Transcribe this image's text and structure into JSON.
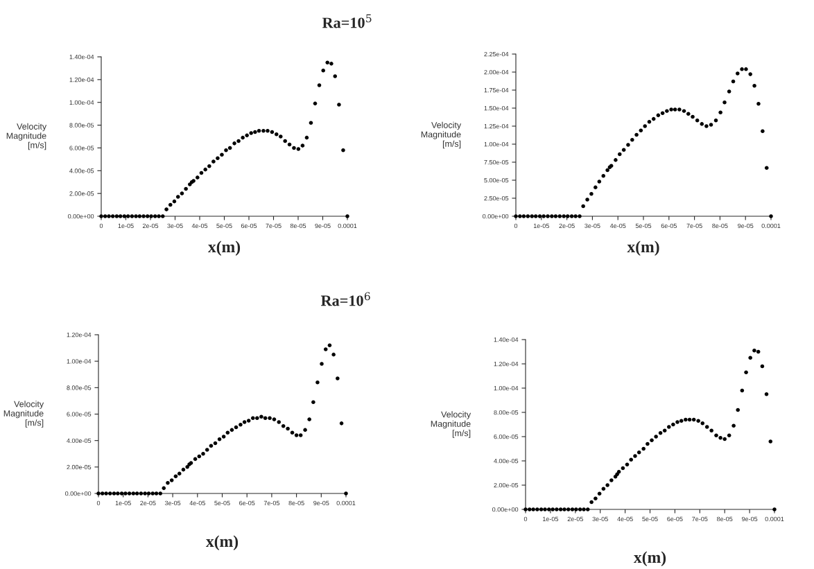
{
  "chart_data": [
    {
      "type": "scatter",
      "title": "Ra=10$^{5}$",
      "xlabel": "x(m)",
      "ylabel": "Velocity\nMagnitude\n[m/s]",
      "color": "#000000",
      "marker": "circle",
      "x": [
        0,
        1.6e-06,
        3.1e-06,
        4.7e-06,
        6.3e-06,
        7.8e-06,
        9.4e-06,
        1.09e-05,
        1.25e-05,
        1.41e-05,
        1.56e-05,
        1.72e-05,
        1.88e-05,
        2.03e-05,
        2.19e-05,
        2.34e-05,
        2.5e-05,
        2.65e-05,
        2.81e-05,
        2.97e-05,
        3.12e-05,
        3.28e-05,
        3.44e-05,
        3.6e-05,
        3.68e-05,
        3.75e-05,
        3.91e-05,
        4.07e-05,
        4.23e-05,
        4.39e-05,
        4.56e-05,
        4.73e-05,
        4.9e-05,
        5.07e-05,
        5.23e-05,
        5.41e-05,
        5.58e-05,
        5.75e-05,
        5.92e-05,
        6.09e-05,
        6.25e-05,
        6.41e-05,
        6.59e-05,
        6.76e-05,
        6.94e-05,
        7.12e-05,
        7.29e-05,
        7.47e-05,
        7.65e-05,
        7.83e-05,
        8.01e-05,
        8.18e-05,
        8.35e-05,
        8.52e-05,
        8.69e-05,
        8.86e-05,
        9.02e-05,
        9.19e-05,
        9.35e-05,
        9.5e-05,
        9.66e-05,
        9.83e-05,
        0.0001
      ],
      "values": [
        0,
        0,
        0,
        0,
        0,
        0,
        0,
        0,
        0,
        0,
        0,
        0,
        0,
        0,
        0,
        0,
        0,
        6e-06,
        1e-05,
        1.3e-05,
        1.7e-05,
        2e-05,
        2.4e-05,
        2.8e-05,
        3e-05,
        3.1e-05,
        3.4e-05,
        3.8e-05,
        4.1e-05,
        4.4e-05,
        4.8e-05,
        5.1e-05,
        5.4e-05,
        5.8e-05,
        6e-05,
        6.4e-05,
        6.6e-05,
        6.9e-05,
        7.1e-05,
        7.3e-05,
        7.4e-05,
        7.5e-05,
        7.5e-05,
        7.5e-05,
        7.4e-05,
        7.2e-05,
        7e-05,
        6.6e-05,
        6.3e-05,
        6e-05,
        5.9e-05,
        6.2e-05,
        6.9e-05,
        8.2e-05,
        9.9e-05,
        0.000115,
        0.000128,
        0.000135,
        0.000134,
        0.000123,
        9.8e-05,
        5.8e-05,
        0
      ],
      "xlim": [
        0,
        0.0001
      ],
      "ylim": [
        0,
        0.00014
      ],
      "xticks": [
        0,
        {
          "value": 1e-05,
          "label": "1e-05"
        },
        {
          "value": 2e-05,
          "label": "2e-05"
        },
        {
          "value": 3e-05,
          "label": "3e-05"
        },
        {
          "value": 4e-05,
          "label": "4e-05"
        },
        {
          "value": 5e-05,
          "label": "5e-05"
        },
        {
          "value": 6e-05,
          "label": "6e-05"
        },
        {
          "value": 7e-05,
          "label": "7e-05"
        },
        {
          "value": 8e-05,
          "label": "8e-05"
        },
        {
          "value": 9e-05,
          "label": "9e-05"
        },
        {
          "value": 0.0001,
          "label": "0.0001"
        }
      ],
      "yticks": [
        {
          "value": 0,
          "label": "0.00e+00"
        },
        {
          "value": 2e-05,
          "label": "2.00e-05"
        },
        {
          "value": 4e-05,
          "label": "4.00e-05"
        },
        {
          "value": 6e-05,
          "label": "6.00e-05"
        },
        {
          "value": 8e-05,
          "label": "8.00e-05"
        },
        {
          "value": 0.0001,
          "label": "1.00e-04"
        },
        {
          "value": 0.00012,
          "label": "1.20e-04"
        },
        {
          "value": 0.00014,
          "label": "1.40e-04"
        }
      ]
    },
    {
      "type": "scatter",
      "xlabel": "x(m)",
      "ylabel": "Velocity\nMagnitude\n[m/s]",
      "color": "#000000",
      "marker": "circle",
      "x": [
        0,
        1.6e-06,
        3.1e-06,
        4.7e-06,
        6.3e-06,
        7.8e-06,
        9.4e-06,
        1.09e-05,
        1.25e-05,
        1.41e-05,
        1.56e-05,
        1.72e-05,
        1.88e-05,
        2.03e-05,
        2.19e-05,
        2.34e-05,
        2.5e-05,
        2.64e-05,
        2.8e-05,
        2.96e-05,
        3.12e-05,
        3.27e-05,
        3.43e-05,
        3.59e-05,
        3.68e-05,
        3.74e-05,
        3.91e-05,
        4.07e-05,
        4.23e-05,
        4.4e-05,
        4.56e-05,
        4.73e-05,
        4.9e-05,
        5.06e-05,
        5.23e-05,
        5.4e-05,
        5.58e-05,
        5.75e-05,
        5.92e-05,
        6.09e-05,
        6.24e-05,
        6.41e-05,
        6.59e-05,
        6.76e-05,
        6.93e-05,
        7.11e-05,
        7.29e-05,
        7.47e-05,
        7.65e-05,
        7.84e-05,
        8.02e-05,
        8.18e-05,
        8.36e-05,
        8.52e-05,
        8.69e-05,
        8.86e-05,
        9.02e-05,
        9.19e-05,
        9.35e-05,
        9.51e-05,
        9.67e-05,
        9.83e-05,
        0.0001
      ],
      "values": [
        0,
        0,
        0,
        0,
        0,
        0,
        0,
        0,
        0,
        0,
        0,
        0,
        0,
        0,
        0,
        0,
        0,
        1.4e-05,
        2.3e-05,
        3.1e-05,
        4e-05,
        4.8e-05,
        5.6e-05,
        6.4e-05,
        6.8e-05,
        7e-05,
        7.8e-05,
        8.6e-05,
        9.2e-05,
        9.9e-05,
        0.000106,
        0.000113,
        0.000119,
        0.000125,
        0.000131,
        0.000135,
        0.00014,
        0.000143,
        0.000146,
        0.000148,
        0.000148,
        0.000148,
        0.000146,
        0.000142,
        0.000138,
        0.000133,
        0.000128,
        0.000125,
        0.000127,
        0.000133,
        0.000144,
        0.000158,
        0.000173,
        0.000187,
        0.000198,
        0.000204,
        0.000204,
        0.000197,
        0.000181,
        0.000156,
        0.000118,
        6.7e-05,
        0
      ],
      "xlim": [
        0,
        0.0001
      ],
      "ylim": [
        0,
        0.000225
      ],
      "xticks": [
        0,
        {
          "value": 1e-05,
          "label": "1e-05"
        },
        {
          "value": 2e-05,
          "label": "2e-05"
        },
        {
          "value": 3e-05,
          "label": "3e-05"
        },
        {
          "value": 4e-05,
          "label": "4e-05"
        },
        {
          "value": 5e-05,
          "label": "5e-05"
        },
        {
          "value": 6e-05,
          "label": "6e-05"
        },
        {
          "value": 7e-05,
          "label": "7e-05"
        },
        {
          "value": 8e-05,
          "label": "8e-05"
        },
        {
          "value": 9e-05,
          "label": "9e-05"
        },
        {
          "value": 0.0001,
          "label": "0.0001"
        }
      ],
      "yticks": [
        {
          "value": 0,
          "label": "0.00e+00"
        },
        {
          "value": 2.5e-05,
          "label": "2.50e-05"
        },
        {
          "value": 5e-05,
          "label": "5.00e-05"
        },
        {
          "value": 7.5e-05,
          "label": "7.50e-05"
        },
        {
          "value": 0.0001,
          "label": "1.00e-04"
        },
        {
          "value": 0.000125,
          "label": "1.25e-04"
        },
        {
          "value": 0.00015,
          "label": "1.50e-04"
        },
        {
          "value": 0.000175,
          "label": "1.75e-04"
        },
        {
          "value": 0.0002,
          "label": "2.00e-04"
        },
        {
          "value": 0.000225,
          "label": "2.25e-04"
        }
      ]
    },
    {
      "type": "scatter",
      "title": "Ra=10$^{6}$",
      "xlabel": "x(m)",
      "ylabel": "Velocity\nMagnitude\n[m/s]",
      "color": "#000000",
      "marker": "circle",
      "x": [
        0,
        1.6e-06,
        3.1e-06,
        4.7e-06,
        6.3e-06,
        7.8e-06,
        9.4e-06,
        1.09e-05,
        1.25e-05,
        1.41e-05,
        1.56e-05,
        1.72e-05,
        1.88e-05,
        2.03e-05,
        2.19e-05,
        2.34e-05,
        2.5e-05,
        2.64e-05,
        2.8e-05,
        2.96e-05,
        3.12e-05,
        3.27e-05,
        3.43e-05,
        3.59e-05,
        3.67e-05,
        3.74e-05,
        3.91e-05,
        4.07e-05,
        4.23e-05,
        4.39e-05,
        4.55e-05,
        4.72e-05,
        4.89e-05,
        5.06e-05,
        5.22e-05,
        5.39e-05,
        5.56e-05,
        5.74e-05,
        5.9e-05,
        6.07e-05,
        6.24e-05,
        6.41e-05,
        6.58e-05,
        6.74e-05,
        6.92e-05,
        7.1e-05,
        7.29e-05,
        7.47e-05,
        7.65e-05,
        7.83e-05,
        8e-05,
        8.17e-05,
        8.35e-05,
        8.52e-05,
        8.68e-05,
        8.85e-05,
        9.02e-05,
        9.18e-05,
        9.34e-05,
        9.5e-05,
        9.66e-05,
        9.82e-05,
        0.0001
      ],
      "values": [
        0,
        0,
        0,
        0,
        0,
        0,
        0,
        0,
        0,
        0,
        0,
        0,
        0,
        0,
        0,
        0,
        0,
        4e-06,
        8e-06,
        1e-05,
        1.3e-05,
        1.5e-05,
        1.8e-05,
        2e-05,
        2.2e-05,
        2.3e-05,
        2.6e-05,
        2.8e-05,
        3e-05,
        3.3e-05,
        3.6e-05,
        3.8e-05,
        4.1e-05,
        4.3e-05,
        4.6e-05,
        4.8e-05,
        5e-05,
        5.2e-05,
        5.4e-05,
        5.5e-05,
        5.7e-05,
        5.7e-05,
        5.8e-05,
        5.7e-05,
        5.7e-05,
        5.6e-05,
        5.4e-05,
        5.1e-05,
        4.9e-05,
        4.6e-05,
        4.4e-05,
        4.4e-05,
        4.8e-05,
        5.6e-05,
        6.9e-05,
        8.4e-05,
        9.8e-05,
        0.000109,
        0.000112,
        0.000105,
        8.7e-05,
        5.3e-05,
        0
      ],
      "xlim": [
        0,
        0.0001
      ],
      "ylim": [
        0,
        0.00012
      ],
      "xticks": [
        0,
        {
          "value": 1e-05,
          "label": "1e-05"
        },
        {
          "value": 2e-05,
          "label": "2e-05"
        },
        {
          "value": 3e-05,
          "label": "3e-05"
        },
        {
          "value": 4e-05,
          "label": "4e-05"
        },
        {
          "value": 5e-05,
          "label": "5e-05"
        },
        {
          "value": 6e-05,
          "label": "6e-05"
        },
        {
          "value": 7e-05,
          "label": "7e-05"
        },
        {
          "value": 8e-05,
          "label": "8e-05"
        },
        {
          "value": 9e-05,
          "label": "9e-05"
        },
        {
          "value": 0.0001,
          "label": "0.0001"
        }
      ],
      "yticks": [
        {
          "value": 0,
          "label": "0.00e+00"
        },
        {
          "value": 2e-05,
          "label": "2.00e-05"
        },
        {
          "value": 4e-05,
          "label": "4.00e-05"
        },
        {
          "value": 6e-05,
          "label": "6.00e-05"
        },
        {
          "value": 8e-05,
          "label": "8.00e-05"
        },
        {
          "value": 0.0001,
          "label": "1.00e-04"
        },
        {
          "value": 0.00012,
          "label": "1.20e-04"
        }
      ]
    },
    {
      "type": "scatter",
      "xlabel": "x(m)",
      "ylabel": "Velocity\nMagnitude\n[m/s]",
      "color": "#000000",
      "marker": "circle",
      "x": [
        0,
        1.6e-06,
        3.1e-06,
        4.7e-06,
        6.3e-06,
        7.8e-06,
        9.4e-06,
        1.09e-05,
        1.25e-05,
        1.41e-05,
        1.56e-05,
        1.72e-05,
        1.88e-05,
        2.03e-05,
        2.19e-05,
        2.34e-05,
        2.5e-05,
        2.65e-05,
        2.81e-05,
        2.97e-05,
        3.13e-05,
        3.29e-05,
        3.45e-05,
        3.61e-05,
        3.68e-05,
        3.75e-05,
        3.91e-05,
        4.08e-05,
        4.24e-05,
        4.4e-05,
        4.56e-05,
        4.74e-05,
        4.9e-05,
        5.07e-05,
        5.24e-05,
        5.42e-05,
        5.59e-05,
        5.76e-05,
        5.93e-05,
        6.1e-05,
        6.26e-05,
        6.43e-05,
        6.59e-05,
        6.76e-05,
        6.94e-05,
        7.11e-05,
        7.29e-05,
        7.47e-05,
        7.66e-05,
        7.83e-05,
        8e-05,
        8.18e-05,
        8.36e-05,
        8.53e-05,
        8.7e-05,
        8.86e-05,
        9.03e-05,
        9.19e-05,
        9.35e-05,
        9.51e-05,
        9.68e-05,
        9.84e-05,
        0.0001
      ],
      "values": [
        0,
        0,
        0,
        0,
        0,
        0,
        0,
        0,
        0,
        0,
        0,
        0,
        0,
        0,
        0,
        0,
        0,
        6e-06,
        9e-06,
        1.3e-05,
        1.7e-05,
        2e-05,
        2.4e-05,
        2.7e-05,
        2.9e-05,
        3.1e-05,
        3.4e-05,
        3.7e-05,
        4.1e-05,
        4.4e-05,
        4.7e-05,
        5e-05,
        5.4e-05,
        5.7e-05,
        6e-05,
        6.3e-05,
        6.5e-05,
        6.8e-05,
        7e-05,
        7.2e-05,
        7.3e-05,
        7.4e-05,
        7.4e-05,
        7.4e-05,
        7.3e-05,
        7.1e-05,
        6.8e-05,
        6.5e-05,
        6.1e-05,
        5.9e-05,
        5.8e-05,
        6.1e-05,
        6.9e-05,
        8.2e-05,
        9.8e-05,
        0.000113,
        0.000125,
        0.000131,
        0.00013,
        0.000118,
        9.5e-05,
        5.6e-05,
        0
      ],
      "xlim": [
        0,
        0.0001
      ],
      "ylim": [
        0,
        0.00014
      ],
      "xticks": [
        0,
        {
          "value": 1e-05,
          "label": "1e-05"
        },
        {
          "value": 2e-05,
          "label": "2e-05"
        },
        {
          "value": 3e-05,
          "label": "3e-05"
        },
        {
          "value": 4e-05,
          "label": "4e-05"
        },
        {
          "value": 5e-05,
          "label": "5e-05"
        },
        {
          "value": 6e-05,
          "label": "6e-05"
        },
        {
          "value": 7e-05,
          "label": "7e-05"
        },
        {
          "value": 8e-05,
          "label": "8e-05"
        },
        {
          "value": 9e-05,
          "label": "9e-05"
        },
        {
          "value": 0.0001,
          "label": "0.0001"
        }
      ],
      "yticks": [
        {
          "value": 0,
          "label": "0.00e+00"
        },
        {
          "value": 2e-05,
          "label": "2.00e-05"
        },
        {
          "value": 4e-05,
          "label": "4.00e-05"
        },
        {
          "value": 6e-05,
          "label": "6.00e-05"
        },
        {
          "value": 8e-05,
          "label": "8.00e-05"
        },
        {
          "value": 0.0001,
          "label": "1.00e-04"
        },
        {
          "value": 0.00012,
          "label": "1.20e-04"
        },
        {
          "value": 0.00014,
          "label": "1.40e-04"
        }
      ]
    }
  ]
}
